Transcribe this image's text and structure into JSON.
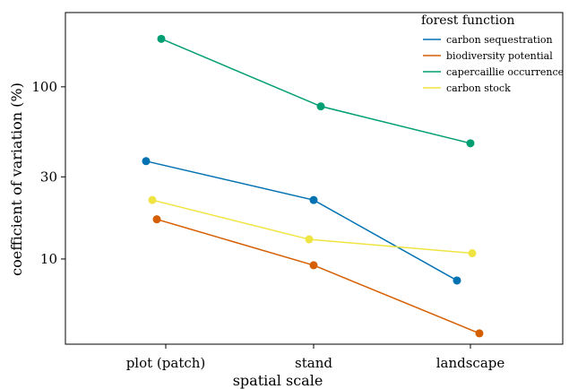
{
  "chart_data": {
    "type": "line",
    "xlabel": "spatial scale",
    "ylabel": "coefficient of variation (%)",
    "y_scale": "log",
    "ylim": [
      3.2,
      270
    ],
    "categories": [
      "plot (patch)",
      "stand",
      "landscape"
    ],
    "yticks": [
      {
        "value": 10,
        "label": "10"
      },
      {
        "value": 30,
        "label": "30"
      },
      {
        "value": 100,
        "label": "100"
      }
    ],
    "legend": {
      "title": "forest function",
      "position": "top-right"
    },
    "series": [
      {
        "name": "carbon sequestration",
        "color": "#0072B2",
        "values": [
          37,
          22,
          7.5
        ]
      },
      {
        "name": "biodiversity potential",
        "color": "#D55E00",
        "values": [
          17,
          9.2,
          3.7
        ]
      },
      {
        "name": "capercaillie occurrence",
        "color": "#009E73",
        "values": [
          190,
          77,
          47
        ]
      },
      {
        "name": "carbon stock",
        "color": "#F0E442",
        "values": [
          22,
          13,
          10.8
        ]
      }
    ]
  }
}
